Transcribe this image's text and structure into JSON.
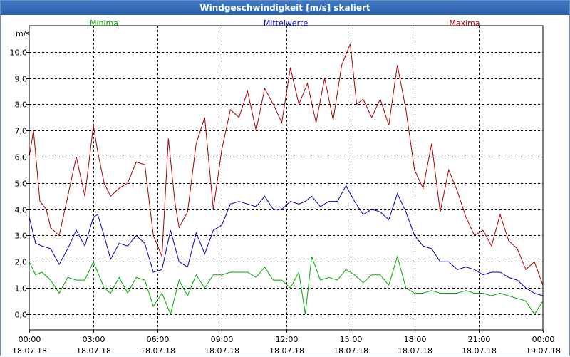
{
  "window": {
    "title": "Windgeschwindigkeit [m/s] skaliert"
  },
  "chart_data": {
    "type": "line",
    "title": "Windgeschwindigkeit [m/s] skaliert",
    "ylabel": "m/s",
    "ylim": [
      -0.6,
      11.0
    ],
    "yticks": [
      "0,0",
      "1,0",
      "2,0",
      "3,0",
      "4,0",
      "5,0",
      "6,0",
      "7,0",
      "8,0",
      "9,0",
      "10,0"
    ],
    "xlim": [
      0,
      24
    ],
    "xticks": [
      {
        "time": "00:00",
        "date": "18.07.18"
      },
      {
        "time": "03:00",
        "date": "18.07.18"
      },
      {
        "time": "06:00",
        "date": "18.07.18"
      },
      {
        "time": "09:00",
        "date": "18.07.18"
      },
      {
        "time": "12:00",
        "date": "18.07.18"
      },
      {
        "time": "15:00",
        "date": "18.07.18"
      },
      {
        "time": "18:00",
        "date": "18.07.18"
      },
      {
        "time": "21:00",
        "date": "18.07.18"
      },
      {
        "time": "00:00",
        "date": "19.07.18"
      }
    ],
    "grid": true,
    "legend_position": "top",
    "series": [
      {
        "name": "Minima",
        "color": "#00aa00",
        "points": [
          [
            0,
            2.0
          ],
          [
            0.3,
            1.5
          ],
          [
            0.6,
            1.6
          ],
          [
            1.0,
            1.3
          ],
          [
            1.4,
            0.8
          ],
          [
            1.8,
            1.4
          ],
          [
            2.2,
            1.3
          ],
          [
            2.6,
            1.3
          ],
          [
            3.0,
            2.0
          ],
          [
            3.2,
            1.6
          ],
          [
            3.5,
            1.0
          ],
          [
            3.8,
            0.8
          ],
          [
            4.2,
            1.4
          ],
          [
            4.6,
            0.8
          ],
          [
            5.0,
            1.4
          ],
          [
            5.4,
            1.3
          ],
          [
            5.8,
            0.3
          ],
          [
            6.2,
            0.8
          ],
          [
            6.6,
            0.0
          ],
          [
            7.0,
            1.3
          ],
          [
            7.4,
            0.7
          ],
          [
            7.8,
            1.5
          ],
          [
            8.2,
            1.0
          ],
          [
            8.6,
            1.5
          ],
          [
            9.0,
            1.5
          ],
          [
            9.4,
            1.6
          ],
          [
            9.8,
            1.6
          ],
          [
            10.2,
            1.6
          ],
          [
            10.6,
            1.4
          ],
          [
            11.0,
            1.8
          ],
          [
            11.4,
            1.3
          ],
          [
            11.8,
            1.3
          ],
          [
            12.2,
            1.0
          ],
          [
            12.6,
            1.6
          ],
          [
            12.9,
            0.0
          ],
          [
            13.2,
            2.2
          ],
          [
            13.6,
            1.3
          ],
          [
            14.0,
            1.4
          ],
          [
            14.4,
            1.3
          ],
          [
            14.8,
            1.7
          ],
          [
            15.2,
            1.5
          ],
          [
            15.6,
            1.2
          ],
          [
            16.0,
            1.5
          ],
          [
            16.4,
            1.5
          ],
          [
            16.8,
            1.1
          ],
          [
            17.2,
            2.2
          ],
          [
            17.6,
            1.0
          ],
          [
            18.0,
            0.8
          ],
          [
            18.4,
            0.8
          ],
          [
            18.8,
            0.9
          ],
          [
            19.2,
            0.8
          ],
          [
            19.6,
            0.8
          ],
          [
            20.0,
            0.8
          ],
          [
            20.4,
            0.9
          ],
          [
            20.8,
            0.8
          ],
          [
            21.2,
            0.8
          ],
          [
            21.6,
            0.7
          ],
          [
            22.0,
            0.8
          ],
          [
            22.4,
            0.7
          ],
          [
            22.8,
            0.6
          ],
          [
            23.2,
            0.5
          ],
          [
            23.6,
            0.0
          ],
          [
            24.0,
            0.5
          ]
        ]
      },
      {
        "name": "Mittelwerte",
        "color": "#0000bb",
        "points": [
          [
            0,
            3.7
          ],
          [
            0.3,
            2.7
          ],
          [
            0.6,
            2.6
          ],
          [
            1.0,
            2.5
          ],
          [
            1.4,
            1.9
          ],
          [
            1.8,
            2.5
          ],
          [
            2.2,
            3.2
          ],
          [
            2.6,
            2.6
          ],
          [
            3.0,
            3.7
          ],
          [
            3.2,
            3.8
          ],
          [
            3.5,
            3.0
          ],
          [
            3.8,
            2.1
          ],
          [
            4.2,
            2.7
          ],
          [
            4.6,
            2.6
          ],
          [
            5.0,
            3.0
          ],
          [
            5.4,
            2.7
          ],
          [
            5.8,
            1.6
          ],
          [
            6.2,
            1.7
          ],
          [
            6.6,
            3.2
          ],
          [
            7.0,
            2.0
          ],
          [
            7.4,
            1.8
          ],
          [
            7.8,
            3.1
          ],
          [
            8.2,
            2.3
          ],
          [
            8.6,
            3.2
          ],
          [
            9.0,
            3.4
          ],
          [
            9.4,
            4.2
          ],
          [
            9.8,
            4.3
          ],
          [
            10.2,
            4.2
          ],
          [
            10.6,
            4.1
          ],
          [
            11.0,
            4.5
          ],
          [
            11.4,
            4.0
          ],
          [
            11.8,
            4.0
          ],
          [
            12.2,
            4.3
          ],
          [
            12.6,
            4.2
          ],
          [
            12.9,
            4.3
          ],
          [
            13.2,
            4.5
          ],
          [
            13.6,
            4.1
          ],
          [
            14.0,
            4.3
          ],
          [
            14.4,
            4.3
          ],
          [
            14.8,
            4.9
          ],
          [
            15.2,
            4.3
          ],
          [
            15.6,
            3.8
          ],
          [
            16.0,
            4.0
          ],
          [
            16.4,
            3.9
          ],
          [
            16.8,
            3.6
          ],
          [
            17.2,
            4.6
          ],
          [
            17.6,
            3.9
          ],
          [
            18.0,
            3.0
          ],
          [
            18.4,
            2.6
          ],
          [
            18.8,
            2.5
          ],
          [
            19.2,
            2.0
          ],
          [
            19.6,
            2.0
          ],
          [
            20.0,
            1.7
          ],
          [
            20.4,
            1.8
          ],
          [
            20.8,
            1.7
          ],
          [
            21.2,
            1.5
          ],
          [
            21.6,
            1.6
          ],
          [
            22.0,
            1.6
          ],
          [
            22.4,
            1.4
          ],
          [
            22.8,
            1.3
          ],
          [
            23.2,
            1.0
          ],
          [
            23.6,
            0.8
          ],
          [
            24.0,
            0.7
          ]
        ]
      },
      {
        "name": "Maxima",
        "color": "#aa0000",
        "points": [
          [
            0,
            6.0
          ],
          [
            0.2,
            7.0
          ],
          [
            0.5,
            4.3
          ],
          [
            0.8,
            4.0
          ],
          [
            1.0,
            3.3
          ],
          [
            1.4,
            3.0
          ],
          [
            1.8,
            4.5
          ],
          [
            2.2,
            6.0
          ],
          [
            2.6,
            4.5
          ],
          [
            3.0,
            7.2
          ],
          [
            3.2,
            6.2
          ],
          [
            3.5,
            5.0
          ],
          [
            3.8,
            4.5
          ],
          [
            4.2,
            4.8
          ],
          [
            4.6,
            5.0
          ],
          [
            5.0,
            5.8
          ],
          [
            5.4,
            5.7
          ],
          [
            5.8,
            3.0
          ],
          [
            6.2,
            2.2
          ],
          [
            6.5,
            6.7
          ],
          [
            6.8,
            4.3
          ],
          [
            7.0,
            3.3
          ],
          [
            7.4,
            3.9
          ],
          [
            7.8,
            6.5
          ],
          [
            8.2,
            7.5
          ],
          [
            8.6,
            4.0
          ],
          [
            9.0,
            6.3
          ],
          [
            9.4,
            7.8
          ],
          [
            9.8,
            7.5
          ],
          [
            10.2,
            8.5
          ],
          [
            10.6,
            7.0
          ],
          [
            11.0,
            8.6
          ],
          [
            11.4,
            8.0
          ],
          [
            11.8,
            7.3
          ],
          [
            12.2,
            9.4
          ],
          [
            12.6,
            8.0
          ],
          [
            13.0,
            8.8
          ],
          [
            13.4,
            7.3
          ],
          [
            13.8,
            9.0
          ],
          [
            14.2,
            7.4
          ],
          [
            14.6,
            9.5
          ],
          [
            15.0,
            10.3
          ],
          [
            15.3,
            8.0
          ],
          [
            15.6,
            8.2
          ],
          [
            16.0,
            7.5
          ],
          [
            16.4,
            8.2
          ],
          [
            16.8,
            7.2
          ],
          [
            17.2,
            9.5
          ],
          [
            17.6,
            7.8
          ],
          [
            18.0,
            5.5
          ],
          [
            18.4,
            4.8
          ],
          [
            18.8,
            6.5
          ],
          [
            19.2,
            3.9
          ],
          [
            19.6,
            5.5
          ],
          [
            20.0,
            4.7
          ],
          [
            20.4,
            3.7
          ],
          [
            20.8,
            3.0
          ],
          [
            21.2,
            3.2
          ],
          [
            21.6,
            2.6
          ],
          [
            22.0,
            3.8
          ],
          [
            22.4,
            2.8
          ],
          [
            22.8,
            2.5
          ],
          [
            23.2,
            1.7
          ],
          [
            23.6,
            2.0
          ],
          [
            24.0,
            1.1
          ]
        ]
      }
    ]
  }
}
